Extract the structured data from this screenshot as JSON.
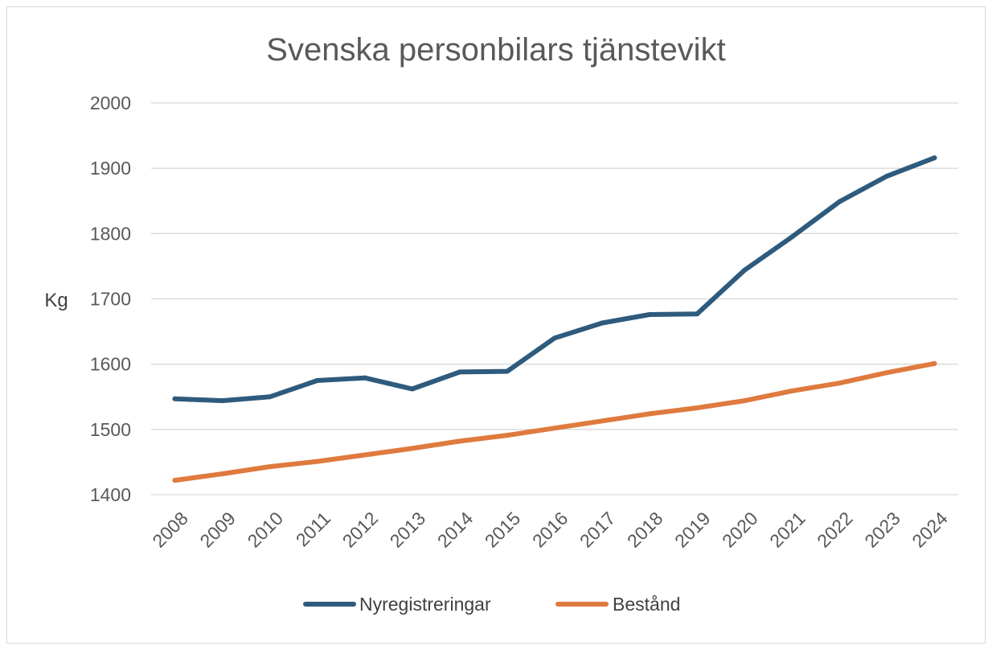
{
  "chart_data": {
    "type": "line",
    "title": "Svenska personbilars tjänstevikt",
    "ylabel": "Kg",
    "xlabel": "",
    "x": [
      "2008",
      "2009",
      "2010",
      "2011",
      "2012",
      "2013",
      "2014",
      "2015",
      "2016",
      "2017",
      "2018",
      "2019",
      "2020",
      "2021",
      "2022",
      "2023",
      "2024"
    ],
    "yticks": [
      "1400",
      "1500",
      "1600",
      "1700",
      "1800",
      "1900",
      "2000"
    ],
    "ylim": [
      1400,
      2000
    ],
    "grid": true,
    "legend_position": "bottom",
    "series": [
      {
        "name": "Nyregistreringar",
        "color": "#2e5b7d",
        "values": [
          1547,
          1544,
          1550,
          1575,
          1579,
          1562,
          1588,
          1589,
          1640,
          1663,
          1676,
          1677,
          1744,
          1795,
          1849,
          1888,
          1916
        ]
      },
      {
        "name": "Bestånd",
        "color": "#df7a3e",
        "values": [
          1422,
          1432,
          1443,
          1451,
          1461,
          1471,
          1482,
          1491,
          1502,
          1513,
          1524,
          1533,
          1544,
          1559,
          1571,
          1587,
          1601
        ]
      }
    ]
  }
}
